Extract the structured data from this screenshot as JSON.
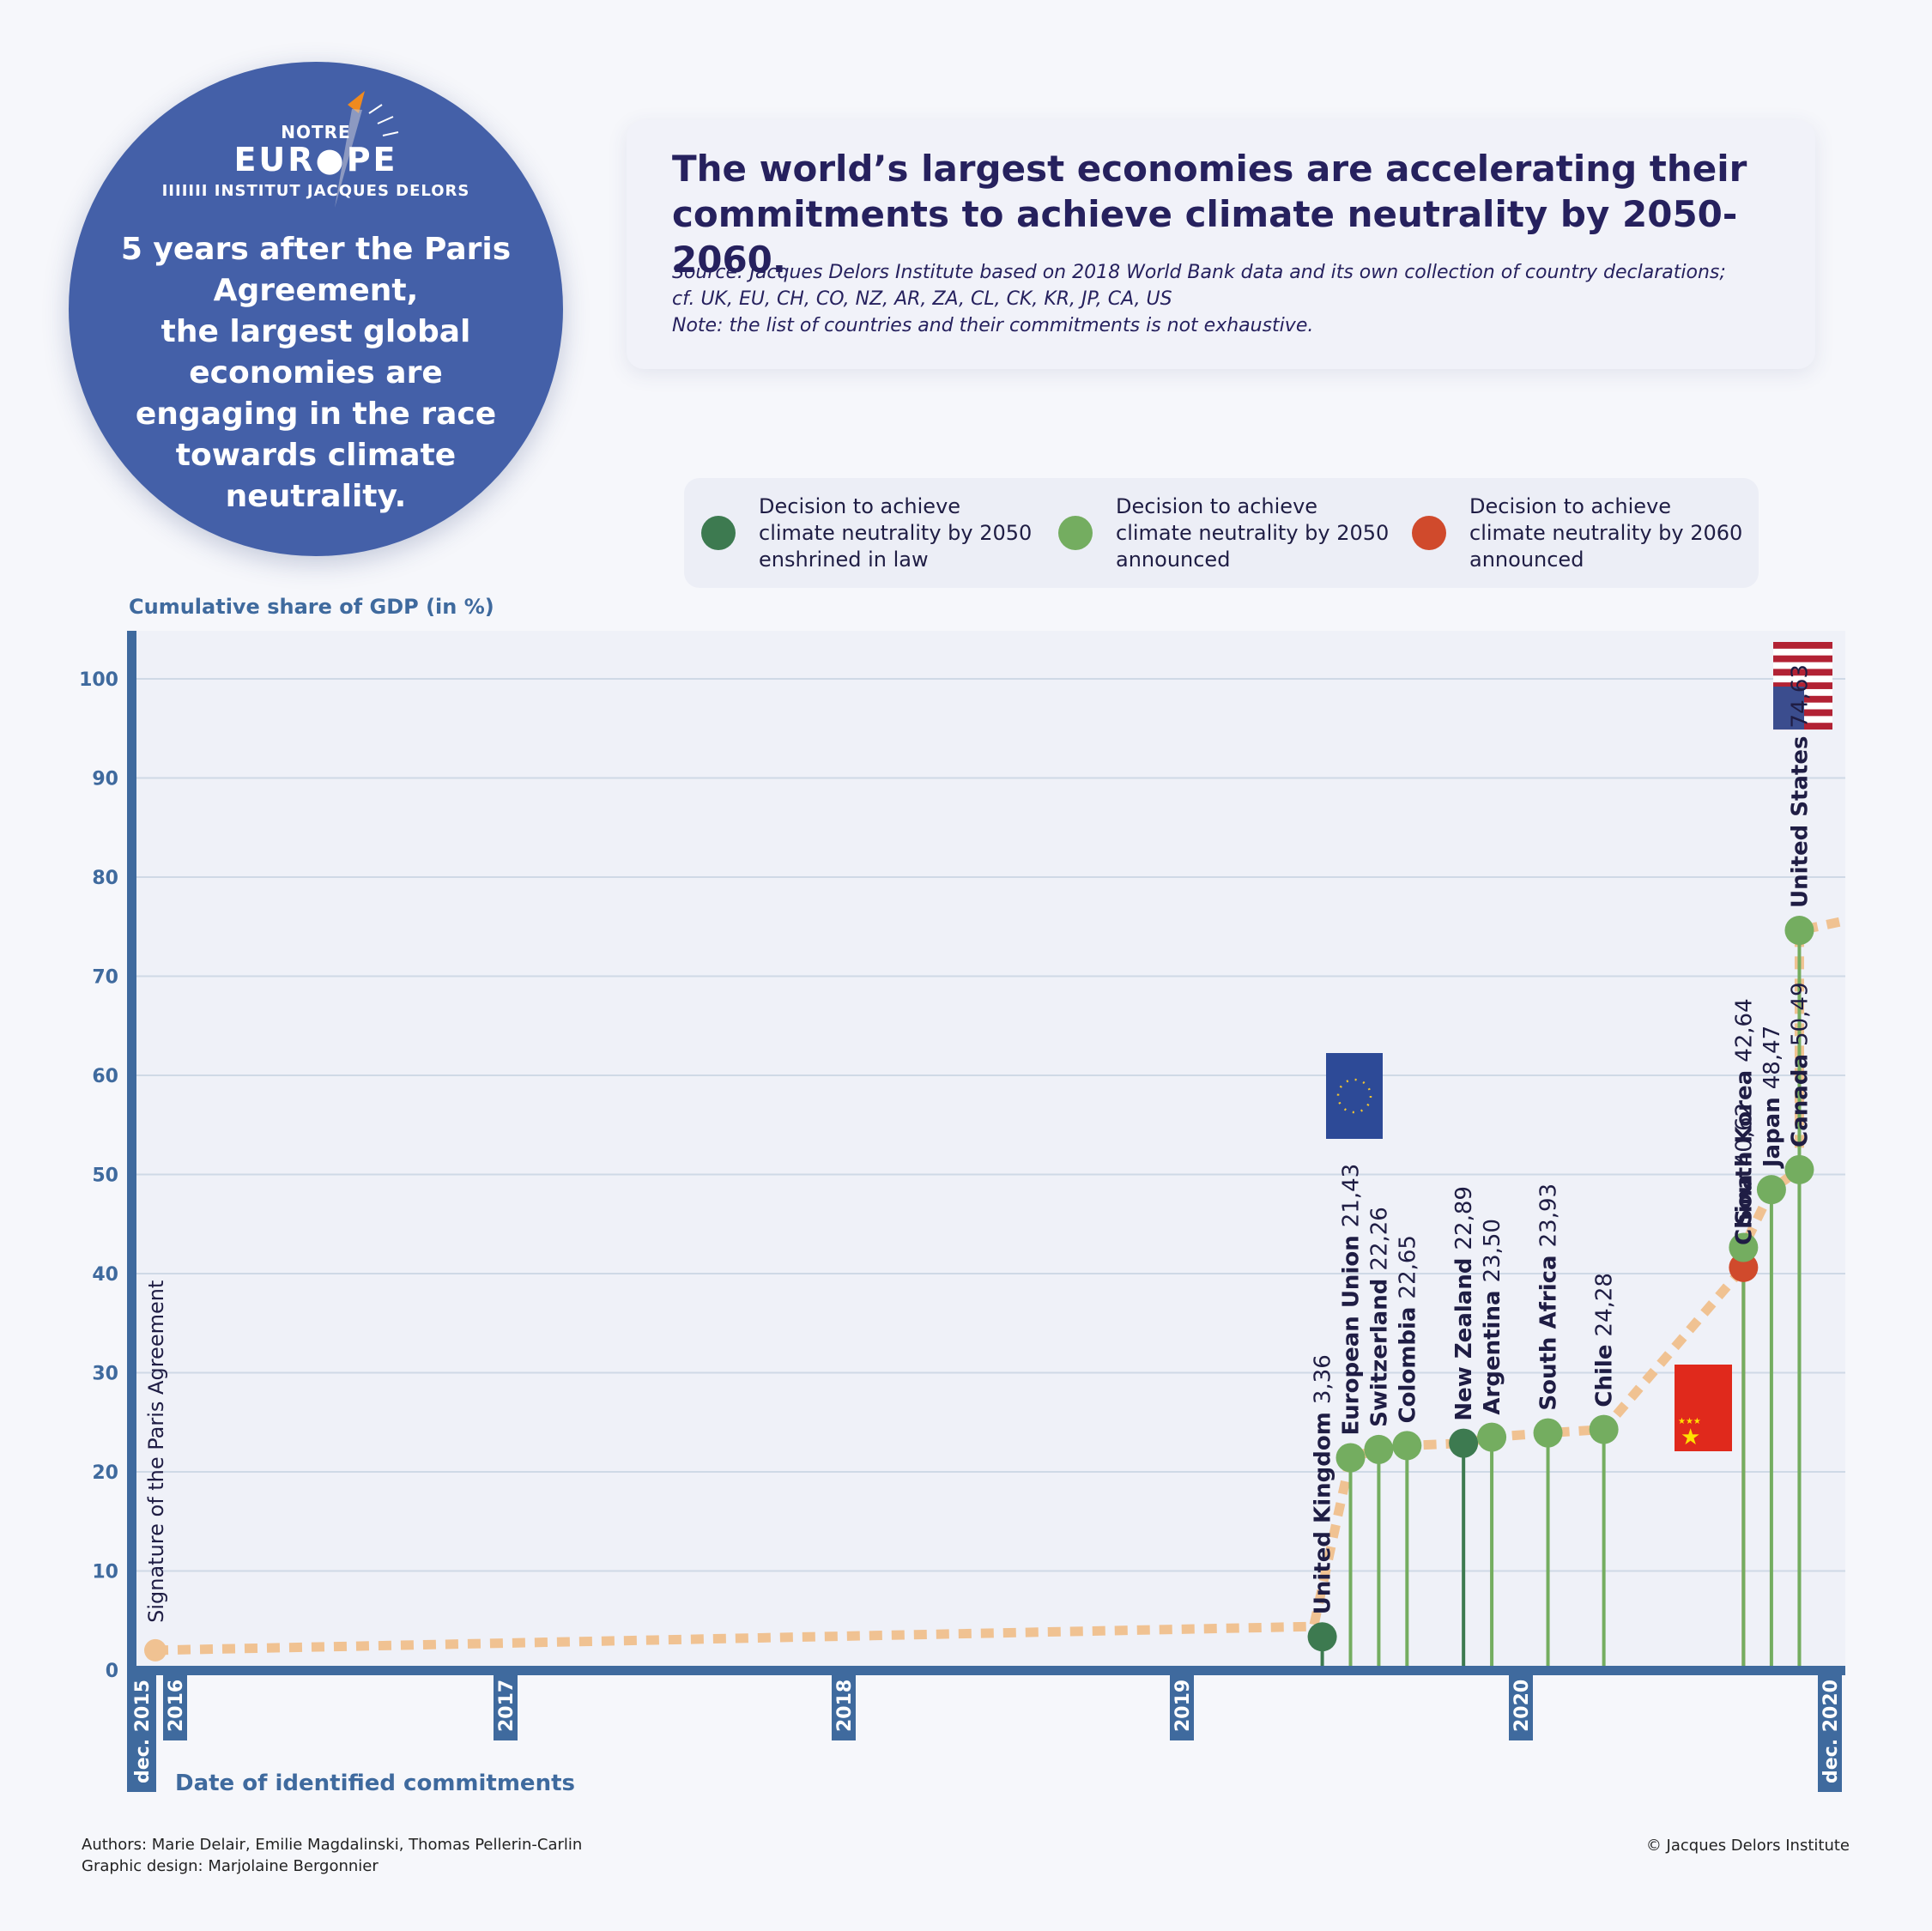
{
  "logo": {
    "top": "NOTRE",
    "main": "EUR●PE",
    "sub": "IIIIIII INSTITUT JACQUES DELORS"
  },
  "tagline": [
    "5 years after the Paris",
    "Agreement,",
    "the largest global",
    "economies are",
    "engaging in the race",
    "towards climate",
    "neutrality."
  ],
  "header": {
    "title_lines": [
      "The world’s largest economies are accelerating their",
      "commitments to achieve climate neutrality by 2050-2060."
    ],
    "source_lines": [
      "Source: Jacques Delors Institute based on 2018 World Bank data and its own collection of country declarations;",
      "cf. UK, EU, CH, CO, NZ, AR, ZA, CL, CK, KR, JP, CA, US",
      "Note: the list of countries and their commitments is not exhaustive."
    ]
  },
  "legend": [
    {
      "lines": [
        "Decision to achieve",
        "climate neutrality by 2050",
        "enshrined in law"
      ],
      "color": "#3d7a50"
    },
    {
      "lines": [
        "Decision to achieve",
        "climate neutrality by 2050",
        "announced"
      ],
      "color": "#74ad60"
    },
    {
      "lines": [
        "Decision to achieve",
        "climate neutrality by 2060",
        "announced"
      ],
      "color": "#d04a2c"
    }
  ],
  "credits": {
    "authors": "Authors: Marie Delair, Emilie Magdalinski, Thomas Pellerin-Carlin",
    "design": "Graphic design: Marjolaine Bergonnier",
    "copyright": "© Jacques Delors Institute"
  },
  "chart_data": {
    "type": "scatter",
    "ylabel": "Cumulative share of GDP (in %)",
    "xlabel": "Date of identified commitments",
    "ylim": [
      0,
      105
    ],
    "yticks": [
      0,
      10,
      20,
      30,
      40,
      50,
      60,
      70,
      80,
      90,
      100
    ],
    "grid": true,
    "xlim": [
      "2015-12",
      "2020-12"
    ],
    "x_ticks": [
      {
        "label": "dec. 2015",
        "date": "2015-12"
      },
      {
        "label": "2016",
        "date": "2016-01"
      },
      {
        "label": "2017",
        "date": "2017-01"
      },
      {
        "label": "2018",
        "date": "2018-01"
      },
      {
        "label": "2019",
        "date": "2019-01"
      },
      {
        "label": "2020",
        "date": "2020-01"
      },
      {
        "label": "dec. 2020",
        "date": "2020-12"
      }
    ],
    "start_point": {
      "label": "Signature of the Paris Agreement",
      "date": "2015-12",
      "value": 2
    },
    "colors": {
      "law": "#3d7a50",
      "announced_2050": "#74ad60",
      "announced_2060": "#d04a2c",
      "trend": "#f0c292",
      "axis": "#3f6a9e"
    },
    "points": [
      {
        "name": "United Kingdom",
        "value": 3.36,
        "label": "3,36",
        "date": "2019-06",
        "status": "law"
      },
      {
        "name": "European Union",
        "value": 21.43,
        "label": "21,43",
        "date": "2019-07",
        "status": "announced_2050"
      },
      {
        "name": "Switzerland",
        "value": 22.26,
        "label": "22,26",
        "date": "2019-08",
        "status": "announced_2050"
      },
      {
        "name": "Colombia",
        "value": 22.65,
        "label": "22,65",
        "date": "2019-09",
        "status": "announced_2050"
      },
      {
        "name": "New Zealand",
        "value": 22.89,
        "label": "22,89",
        "date": "2019-11",
        "status": "law"
      },
      {
        "name": "Argentina",
        "value": 23.5,
        "label": "23,50",
        "date": "2019-12",
        "status": "announced_2050"
      },
      {
        "name": "South Africa",
        "value": 23.93,
        "label": "23,93",
        "date": "2020-02",
        "status": "announced_2050"
      },
      {
        "name": "Chile",
        "value": 24.28,
        "label": "24,28",
        "date": "2020-04",
        "status": "announced_2050"
      },
      {
        "name": "China",
        "value": 40.62,
        "label": "40,62",
        "date": "2020-09",
        "status": "announced_2060"
      },
      {
        "name": "South Korea",
        "value": 42.64,
        "label": "42,64",
        "date": "2020-09",
        "status": "announced_2050"
      },
      {
        "name": "Japan",
        "value": 48.47,
        "label": "48,47",
        "date": "2020-10",
        "status": "announced_2050"
      },
      {
        "name": "Canada",
        "value": 50.49,
        "label": "50,49",
        "date": "2020-11",
        "status": "announced_2050"
      },
      {
        "name": "United States",
        "value": 74.63,
        "label": "74,63",
        "date": "2020-11",
        "status": "announced_2050"
      }
    ]
  }
}
